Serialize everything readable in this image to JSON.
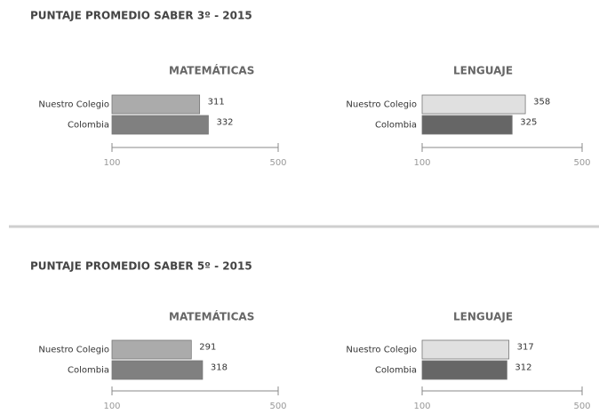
{
  "headings": [
    "PUNTAJE PROMEDIO SABER 3º - 2015",
    "PUNTAJE PROMEDIO SABER 5º - 2015"
  ],
  "chart_data": [
    {
      "type": "bar",
      "orientation": "horizontal",
      "title": "MATEMÁTICAS",
      "categories": [
        "Nuestro Colegio",
        "Colombia"
      ],
      "values": [
        311,
        332
      ],
      "colors": [
        "#ababab",
        "#808080"
      ],
      "xlim": [
        100,
        500
      ],
      "xticks": [
        100,
        500
      ]
    },
    {
      "type": "bar",
      "orientation": "horizontal",
      "title": "LENGUAJE",
      "categories": [
        "Nuestro Colegio",
        "Colombia"
      ],
      "values": [
        358,
        325
      ],
      "colors": [
        "#e0e0e0",
        "#666666"
      ],
      "xlim": [
        100,
        500
      ],
      "xticks": [
        100,
        500
      ]
    },
    {
      "type": "bar",
      "orientation": "horizontal",
      "title": "MATEMÁTICAS",
      "categories": [
        "Nuestro Colegio",
        "Colombia"
      ],
      "values": [
        291,
        318
      ],
      "colors": [
        "#ababab",
        "#808080"
      ],
      "xlim": [
        100,
        500
      ],
      "xticks": [
        100,
        500
      ]
    },
    {
      "type": "bar",
      "orientation": "horizontal",
      "title": "LENGUAJE",
      "categories": [
        "Nuestro Colegio",
        "Colombia"
      ],
      "values": [
        317,
        312
      ],
      "colors": [
        "#e0e0e0",
        "#666666"
      ],
      "xlim": [
        100,
        500
      ],
      "xticks": [
        100,
        500
      ]
    }
  ]
}
